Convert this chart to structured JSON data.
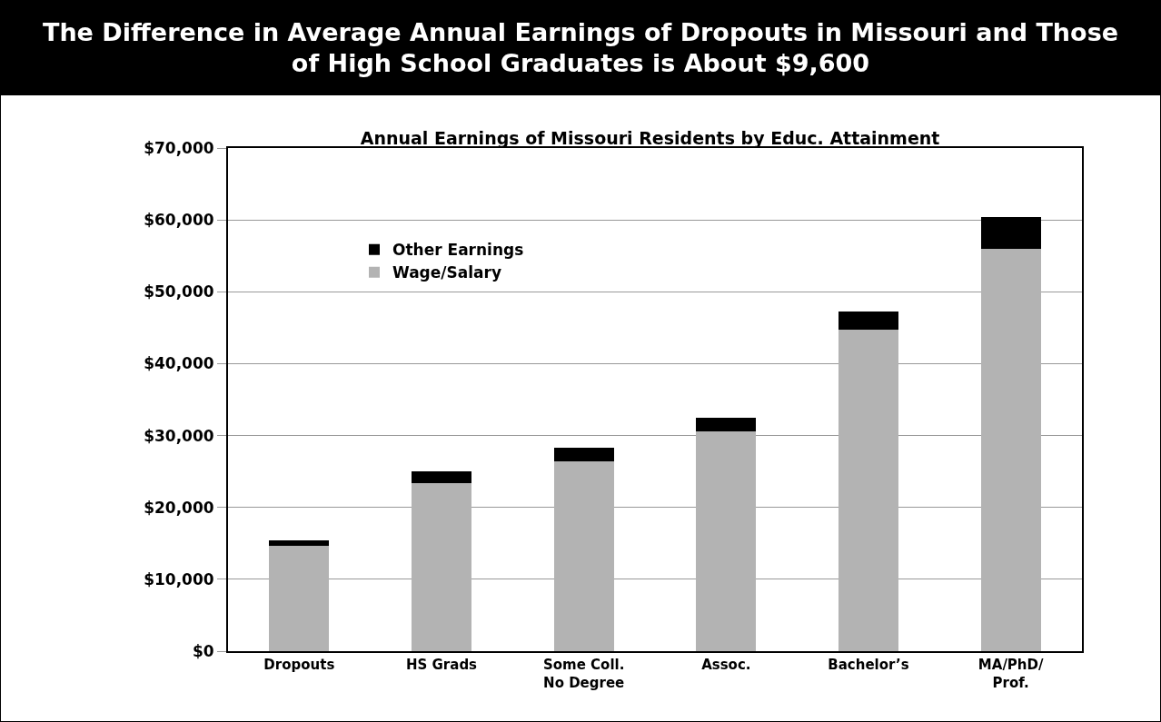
{
  "chart_data": {
    "type": "bar",
    "title": "The Difference in Average Annual Earnings of Dropouts in Missouri and Those of High School Graduates is About $9,600",
    "subtitle": "Annual Earnings of Missouri Residents by Educ. Attainment",
    "categories": [
      "Dropouts",
      "HS Grads",
      "Some Coll.\nNo Degree",
      "Assoc.",
      "Bachelor’s",
      "MA/PhD/\nProf."
    ],
    "stacked": true,
    "series": [
      {
        "name": "Wage/Salary",
        "color": "#b3b3b3",
        "values": [
          14700,
          23400,
          26400,
          30600,
          44700,
          56000
        ]
      },
      {
        "name": "Other Earnings",
        "color": "#000000",
        "values": [
          700,
          1600,
          1900,
          1900,
          2500,
          4400
        ]
      }
    ],
    "ylim": [
      0,
      70000
    ],
    "yticks": [
      {
        "value": 0,
        "label": "$0"
      },
      {
        "value": 10000,
        "label": "$10,000"
      },
      {
        "value": 20000,
        "label": "$20,000"
      },
      {
        "value": 30000,
        "label": "$30,000"
      },
      {
        "value": 40000,
        "label": "$40,000"
      },
      {
        "value": 50000,
        "label": "$50,000"
      },
      {
        "value": 60000,
        "label": "$60,000"
      },
      {
        "value": 70000,
        "label": "$70,000"
      }
    ],
    "grid": "y",
    "legend": "top left"
  }
}
